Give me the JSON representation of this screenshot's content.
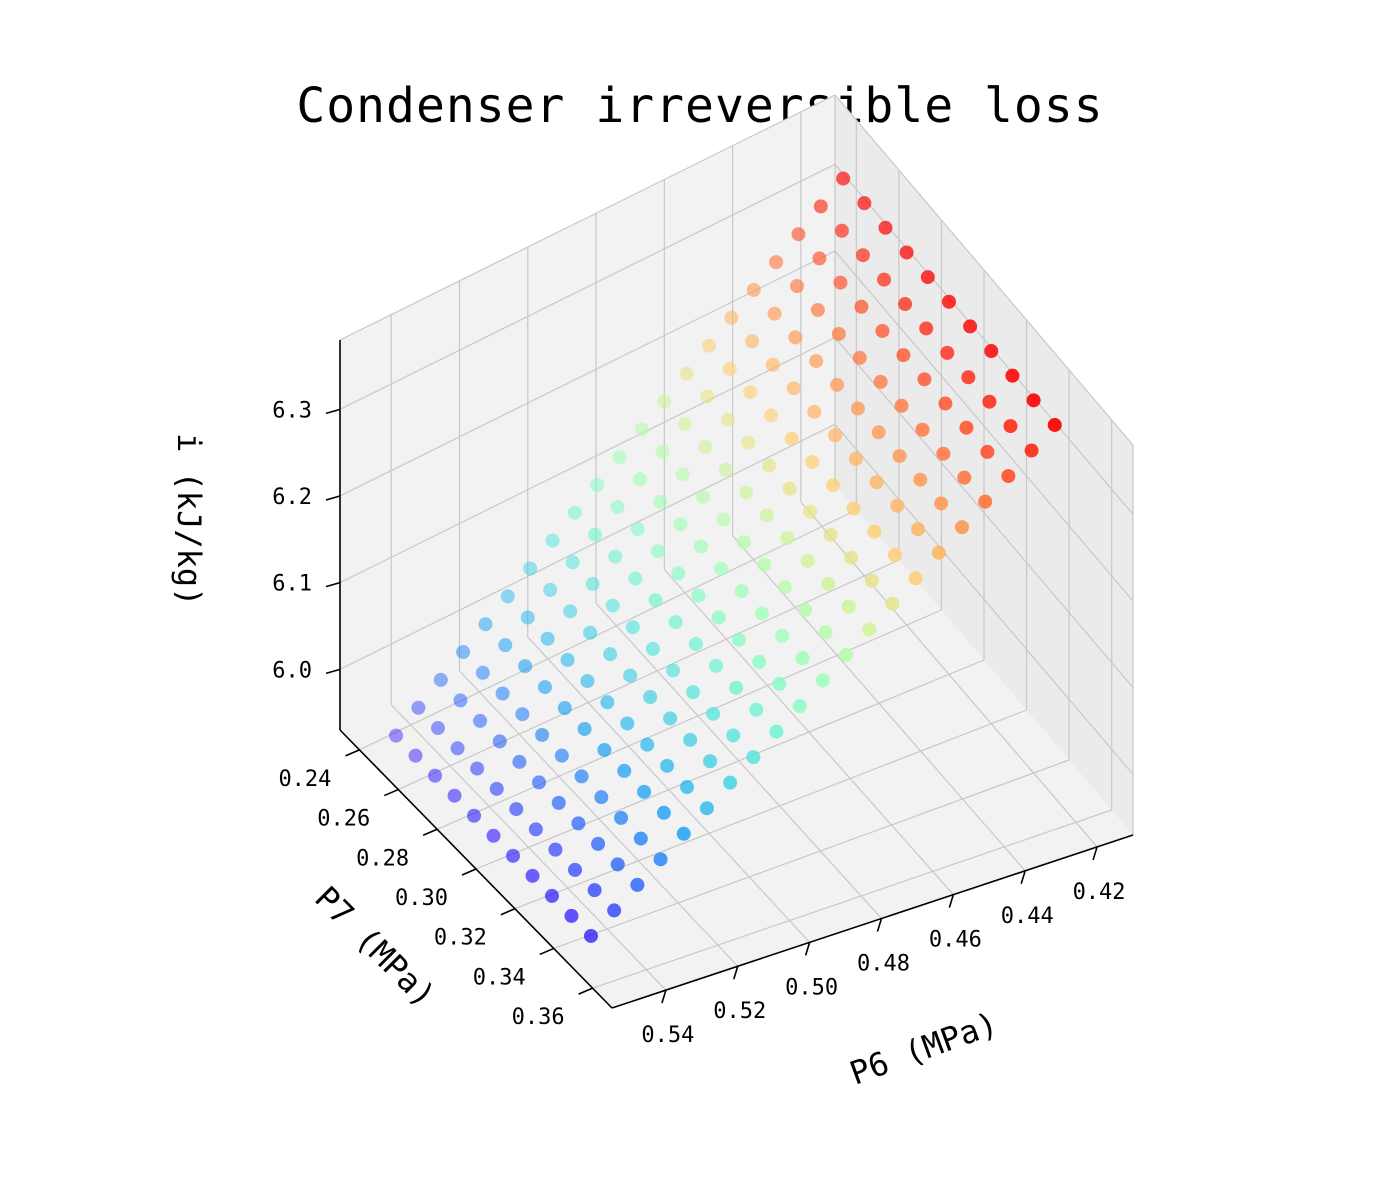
{
  "chart_data": {
    "type": "scatter",
    "projection": "3d",
    "title": "Condenser irreversible loss",
    "xlabel": "P6 (MPa)",
    "ylabel": "P7 (MPa)",
    "zlabel": "i (kJ/kg)",
    "x_ticks": [
      "0.42",
      "0.44",
      "0.46",
      "0.48",
      "0.50",
      "0.52",
      "0.54"
    ],
    "y_ticks": [
      "0.24",
      "0.26",
      "0.28",
      "0.30",
      "0.32",
      "0.34",
      "0.36"
    ],
    "z_ticks": [
      "6.0",
      "6.1",
      "6.2",
      "6.3"
    ],
    "xlim": [
      0.41,
      0.555
    ],
    "ylim": [
      0.23,
      0.37
    ],
    "zlim": [
      5.93,
      6.38
    ],
    "grid": true,
    "colormap": "rainbow",
    "color_by": "z",
    "series": [
      {
        "x_range": [
          0.42,
          0.55
        ],
        "y_range": [
          0.25,
          0.35
        ],
        "x_count": 21,
        "y_count": 11,
        "z_at_x_min": 6.36,
        "z_at_x_max": 5.96,
        "z_variation_with_y": "none"
      }
    ]
  }
}
